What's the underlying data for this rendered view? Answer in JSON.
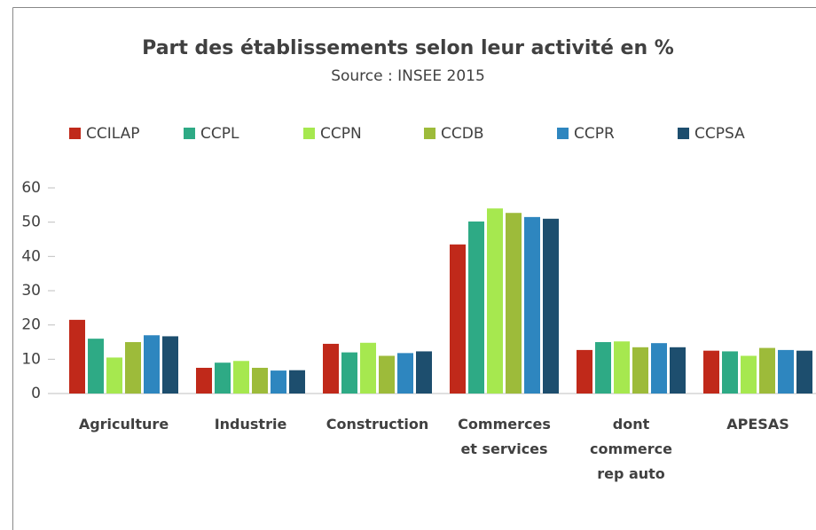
{
  "chart_data": {
    "type": "bar",
    "title": "Part des établissements selon leur activité en %",
    "subtitle": "Source : INSEE 2015",
    "categories": [
      "Agriculture",
      "Industrie",
      "Construction",
      "Commerces\net services",
      "dont\ncommerce\nrep auto",
      "APESAS"
    ],
    "series": [
      {
        "name": "CCILAP",
        "color": "#c0291a",
        "values": [
          21.5,
          7.5,
          14.5,
          43.5,
          12.7,
          12.5
        ]
      },
      {
        "name": "CCPL",
        "color": "#2eaa85",
        "values": [
          16,
          9,
          12,
          50.2,
          15,
          12.3
        ]
      },
      {
        "name": "CCPN",
        "color": "#a6e84f",
        "values": [
          10.5,
          9.5,
          14.8,
          54,
          15.2,
          11
        ]
      },
      {
        "name": "CCDB",
        "color": "#9dbb3a",
        "values": [
          15,
          7.5,
          11,
          52.7,
          13.5,
          13.3
        ]
      },
      {
        "name": "CCPR",
        "color": "#2e86bf",
        "values": [
          17,
          6.7,
          11.8,
          51.5,
          14.7,
          12.7
        ]
      },
      {
        "name": "CCPSA",
        "color": "#1d4e6e",
        "values": [
          16.7,
          6.8,
          12.3,
          51,
          13.5,
          12.5
        ]
      }
    ],
    "ylim": [
      0,
      60
    ],
    "yticks": [
      0,
      10,
      20,
      30,
      40,
      50,
      60
    ],
    "grid": false,
    "legend": "top"
  }
}
